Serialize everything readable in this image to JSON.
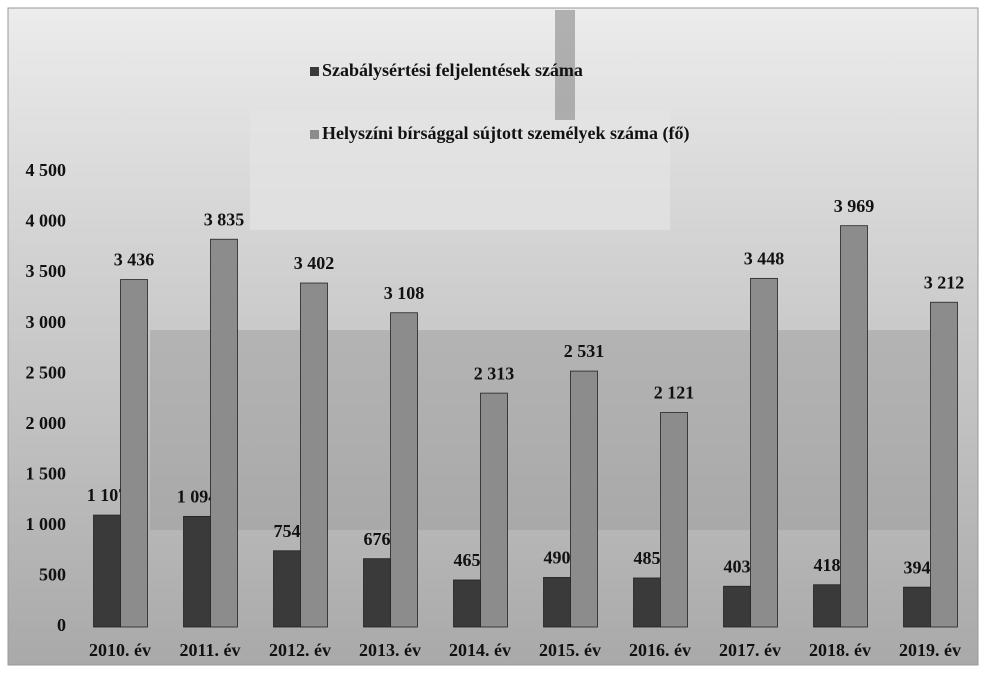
{
  "chart_data": {
    "type": "bar",
    "categories": [
      "2010. év",
      "2011. év",
      "2012. év",
      "2013. év",
      "2014. év",
      "2015. év",
      "2016. év",
      "2017. év",
      "2018. év",
      "2019. év"
    ],
    "series": [
      {
        "name": "Szabálysértési feljelentések száma",
        "color": "#3a3a3a",
        "values": [
          1107,
          1094,
          754,
          676,
          465,
          490,
          485,
          403,
          418,
          394
        ],
        "value_labels": [
          "1 107",
          "1 094",
          "754",
          "676",
          "465",
          "490",
          "485",
          "403",
          "418",
          "394"
        ]
      },
      {
        "name": "Helyszíni bírsággal sújtott személyek száma (fő)",
        "color": "#8c8c8c",
        "values": [
          3436,
          3835,
          3402,
          3108,
          2313,
          2531,
          2121,
          3448,
          3969,
          3212
        ],
        "value_labels": [
          "3 436",
          "3 835",
          "3 402",
          "3 108",
          "2 313",
          "2 531",
          "2 121",
          "3 448",
          "3 969",
          "3 212"
        ]
      }
    ],
    "ylim": [
      0,
      4500
    ],
    "yticks": [
      0,
      500,
      {
        "value": 1000,
        "label": "1 000"
      },
      {
        "value": 1500,
        "label": "1 500"
      },
      {
        "value": 2000,
        "label": "2 000"
      },
      {
        "value": 2500,
        "label": "2 500"
      },
      {
        "value": 3000,
        "label": "3 000"
      },
      {
        "value": 3500,
        "label": "3 500"
      },
      {
        "value": 4000,
        "label": "4 000"
      },
      {
        "value": 4500,
        "label": "4 500"
      }
    ],
    "grid": false
  }
}
